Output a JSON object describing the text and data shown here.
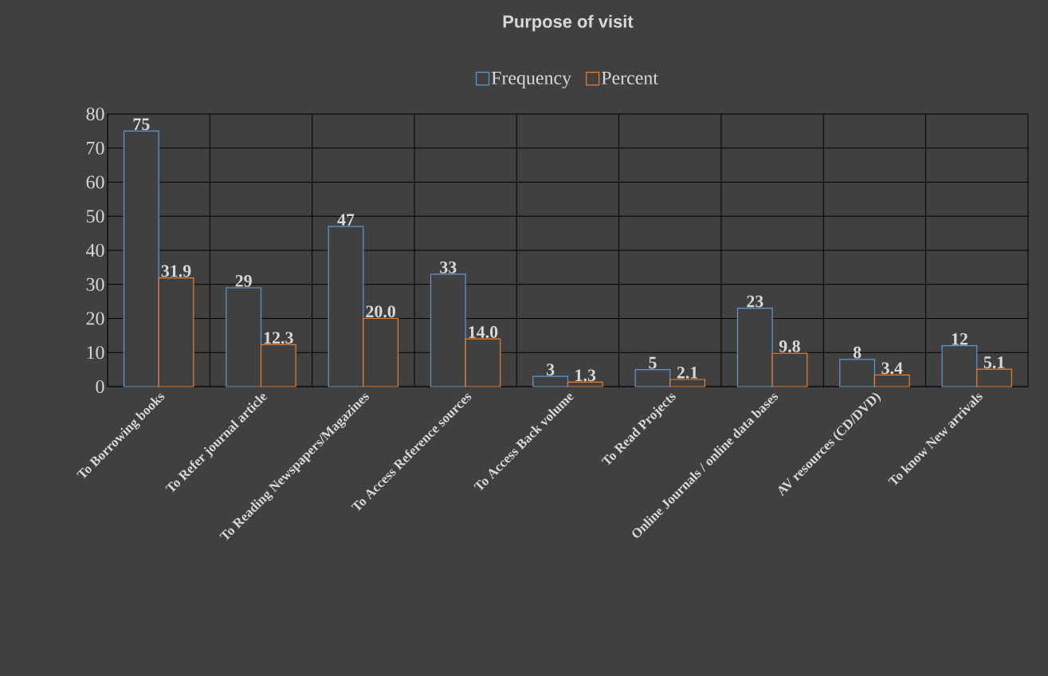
{
  "chart_data": {
    "type": "bar",
    "title": "Purpose of visit",
    "categories": [
      "To Borrowing books",
      "To Refer journal article",
      "To Reading Newspapers/Magazines",
      "To Access Reference sources",
      "To Access Back volume",
      "To Read Projects",
      "Online Journals / online data bases",
      "AV resources (CD/DVD)",
      "To know New arrivals"
    ],
    "series": [
      {
        "name": "Frequency",
        "color": "#5b9bd5",
        "values": [
          75,
          29,
          47,
          33,
          3,
          5,
          23,
          8,
          12
        ],
        "value_labels": [
          "75",
          "29",
          "47",
          "33",
          "3",
          "5",
          "23",
          "8",
          "12"
        ]
      },
      {
        "name": "Percent",
        "color": "#ed7d31",
        "values": [
          31.9,
          12.3,
          20.0,
          14.0,
          1.3,
          2.1,
          9.8,
          3.4,
          5.1
        ],
        "value_labels": [
          "31.9",
          "12.3",
          "20.0",
          "14.0",
          "1.3",
          "2.1",
          "9.8",
          "3.4",
          "5.1"
        ]
      }
    ],
    "ylim": [
      0,
      80
    ],
    "yticks": [
      0,
      10,
      20,
      30,
      40,
      50,
      60,
      70,
      80
    ],
    "grid": true,
    "legend": "top"
  }
}
